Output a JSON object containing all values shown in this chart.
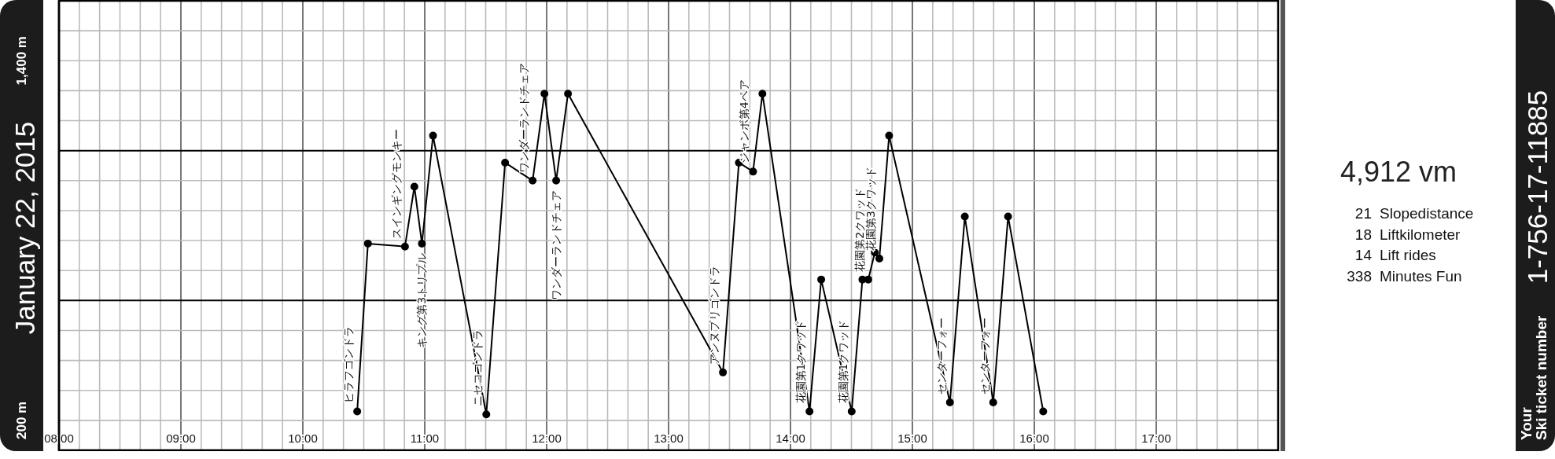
{
  "chart_data": {
    "type": "line",
    "title": "January 22, 2015",
    "x": [
      10.446,
      10.534,
      10.838,
      10.915,
      10.977,
      11.068,
      11.505,
      11.659,
      11.885,
      11.982,
      12.078,
      12.175,
      13.446,
      13.577,
      13.693,
      13.77,
      14.156,
      14.252,
      14.502,
      14.59,
      14.638,
      14.692,
      14.729,
      14.809,
      15.308,
      15.43,
      15.663,
      15.785,
      16.073
    ],
    "series": [
      {
        "color": "#000000",
        "values": [
          230,
          790,
          780,
          980,
          790,
          1150,
          220,
          1060,
          1000,
          1290,
          1000,
          1290,
          360,
          1060,
          1030,
          1290,
          230,
          670,
          230,
          670,
          670,
          760,
          740,
          1150,
          260,
          880,
          260,
          880,
          230
        ]
      }
    ],
    "marker": "circle",
    "line_style": "solid",
    "grid": true,
    "xlim": [
      8,
      18
    ],
    "ylim": [
      100,
      1600
    ],
    "xticks": [
      {
        "value": 8,
        "label": "08:00"
      },
      {
        "value": 8.1667,
        "label": null
      },
      {
        "value": 8.3333,
        "label": null
      },
      {
        "value": 8.5,
        "label": null
      },
      {
        "value": 8.6667,
        "label": null
      },
      {
        "value": 8.8333,
        "label": null
      },
      {
        "value": 9,
        "label": "09:00"
      },
      {
        "value": 9.1667,
        "label": null
      },
      {
        "value": 9.3333,
        "label": null
      },
      {
        "value": 9.5,
        "label": null
      },
      {
        "value": 9.6667,
        "label": null
      },
      {
        "value": 9.8333,
        "label": null
      },
      {
        "value": 10,
        "label": "10:00"
      },
      {
        "value": 10.1667,
        "label": null
      },
      {
        "value": 10.3333,
        "label": null
      },
      {
        "value": 10.5,
        "label": null
      },
      {
        "value": 10.6667,
        "label": null
      },
      {
        "value": 10.8333,
        "label": null
      },
      {
        "value": 11,
        "label": "11:00"
      },
      {
        "value": 11.1667,
        "label": null
      },
      {
        "value": 11.3333,
        "label": null
      },
      {
        "value": 11.5,
        "label": null
      },
      {
        "value": 11.6667,
        "label": null
      },
      {
        "value": 11.8333,
        "label": null
      },
      {
        "value": 12,
        "label": "12:00"
      },
      {
        "value": 12.1667,
        "label": null
      },
      {
        "value": 12.3333,
        "label": null
      },
      {
        "value": 12.5,
        "label": null
      },
      {
        "value": 12.6667,
        "label": null
      },
      {
        "value": 12.8333,
        "label": null
      },
      {
        "value": 13,
        "label": "13:00"
      },
      {
        "value": 13.1667,
        "label": null
      },
      {
        "value": 13.3333,
        "label": null
      },
      {
        "value": 13.5,
        "label": null
      },
      {
        "value": 13.6667,
        "label": null
      },
      {
        "value": 13.8333,
        "label": null
      },
      {
        "value": 14,
        "label": "14:00"
      },
      {
        "value": 14.1667,
        "label": null
      },
      {
        "value": 14.3333,
        "label": null
      },
      {
        "value": 14.5,
        "label": null
      },
      {
        "value": 14.6667,
        "label": null
      },
      {
        "value": 14.8333,
        "label": null
      },
      {
        "value": 15,
        "label": "15:00"
      },
      {
        "value": 15.1667,
        "label": null
      },
      {
        "value": 15.3333,
        "label": null
      },
      {
        "value": 15.5,
        "label": null
      },
      {
        "value": 15.6667,
        "label": null
      },
      {
        "value": 15.8333,
        "label": null
      },
      {
        "value": 16,
        "label": "16:00"
      },
      {
        "value": 16.1667,
        "label": null
      },
      {
        "value": 16.3333,
        "label": null
      },
      {
        "value": 16.5,
        "label": null
      },
      {
        "value": 16.6667,
        "label": null
      },
      {
        "value": 16.8333,
        "label": null
      },
      {
        "value": 17,
        "label": "17:00"
      },
      {
        "value": 17.1667,
        "label": null
      },
      {
        "value": 17.3333,
        "label": null
      },
      {
        "value": 17.5,
        "label": null
      },
      {
        "value": 17.6667,
        "label": null
      },
      {
        "value": 17.8333,
        "label": null
      }
    ],
    "yticks": [
      {
        "value": 200,
        "label": "200 m"
      },
      {
        "value": 300,
        "label": null
      },
      {
        "value": 400,
        "label": null
      },
      {
        "value": 500,
        "label": null
      },
      {
        "value": 700,
        "label": null
      },
      {
        "value": 800,
        "label": null
      },
      {
        "value": 900,
        "label": null
      },
      {
        "value": 1000,
        "label": null
      },
      {
        "value": 1200,
        "label": null
      },
      {
        "value": 1300,
        "label": null
      },
      {
        "value": 1400,
        "label": "1,400 m"
      },
      {
        "value": 1500,
        "label": null
      }
    ],
    "ref_lines": [
      {
        "axis": "y",
        "value": 600,
        "color": "#000000"
      },
      {
        "axis": "y",
        "value": 1100,
        "color": "#000000"
      }
    ],
    "annotations": [
      {
        "text": "ヒラフゴンドラ",
        "x": 10.446,
        "y": 230
      },
      {
        "text": "スインギングモンキー",
        "x": 10.838,
        "y": 780
      },
      {
        "text": "キング第3トリプル",
        "x": 10.977,
        "y": 790
      },
      {
        "text": "ニセコゴンドラ",
        "x": 11.505,
        "y": 220
      },
      {
        "text": "ワンダーランドチェア",
        "x": 11.885,
        "y": 1000
      },
      {
        "text": "ワンダーランドチェア",
        "x": 12.078,
        "y": 1000
      },
      {
        "text": "アンヌプリゴンドラ",
        "x": 13.446,
        "y": 360
      },
      {
        "text": "ジャンボ第4ペア",
        "x": 13.693,
        "y": 1030
      },
      {
        "text": "花園第1クワッド",
        "x": 14.156,
        "y": 230
      },
      {
        "text": "花園第1クワッド",
        "x": 14.502,
        "y": 230
      },
      {
        "text": "花園第2クワッド",
        "x": 14.638,
        "y": 670
      },
      {
        "text": "花園第3クワッド",
        "x": 14.729,
        "y": 740
      },
      {
        "text": "センターフォー",
        "x": 15.308,
        "y": 260
      },
      {
        "text": "センターフォー",
        "x": 15.663,
        "y": 260
      },
      "4,912 vm",
      "21 Slopedistance",
      "18 Liftkilometer",
      "14 Lift rides",
      "338 Minutes Fun",
      "1-756-17-11885",
      "Your",
      "Ski ticket number"
    ]
  }
}
